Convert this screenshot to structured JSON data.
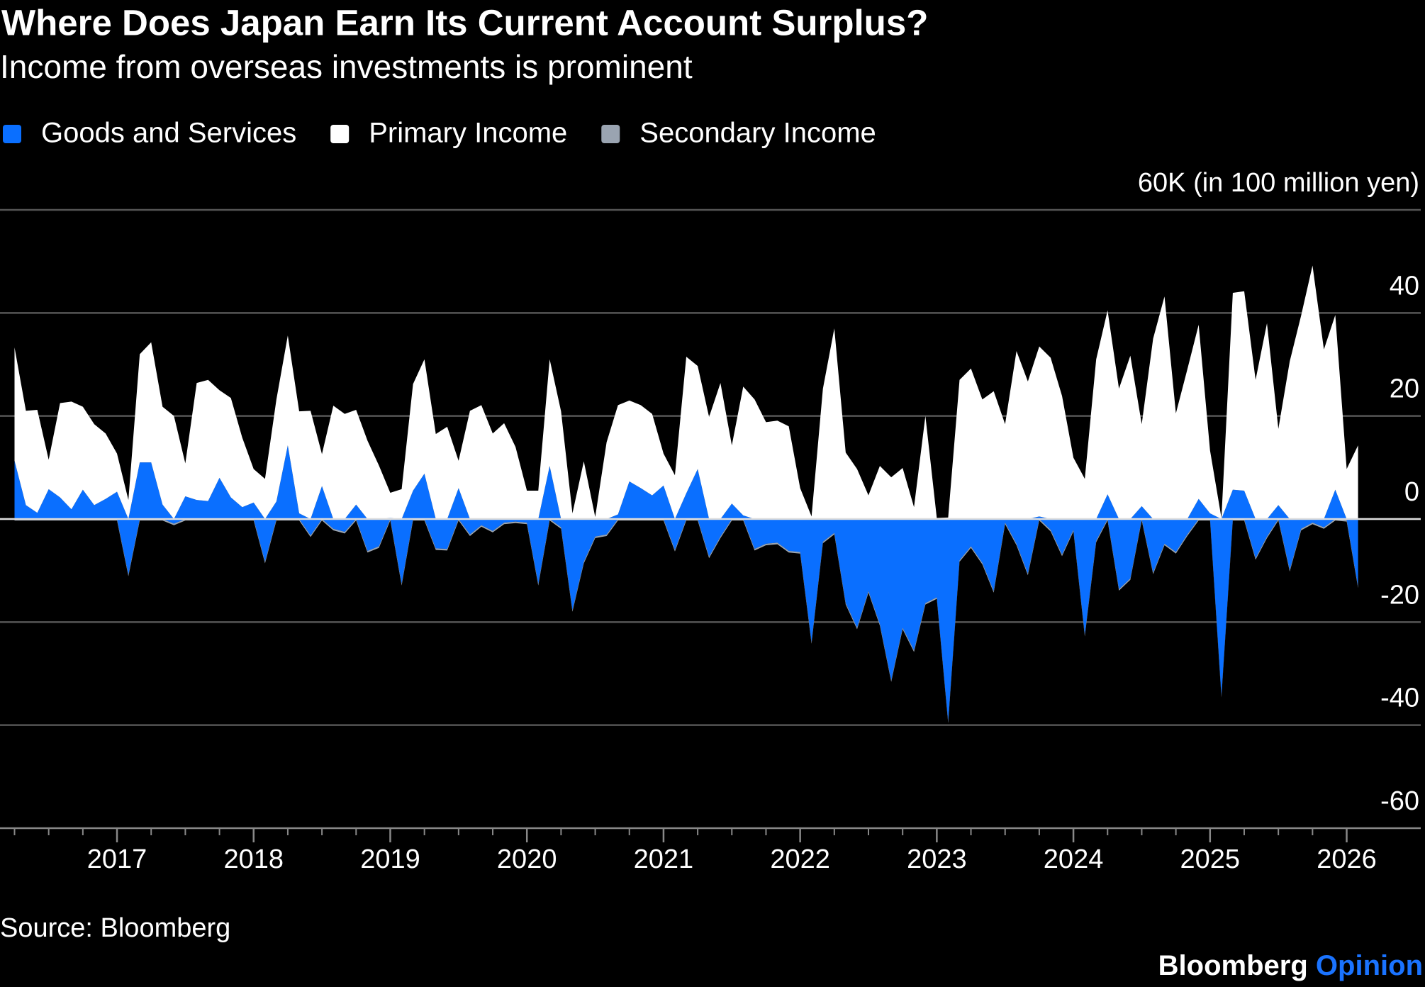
{
  "chart_data": {
    "type": "stacked_area",
    "title": "Where Does Japan Earn Its Current Account Surplus?",
    "subtitle": "Income from overseas investments is prominent",
    "source": "Source: Bloomberg",
    "credit": {
      "brand": "Bloomberg",
      "suffix": "Opinion"
    },
    "categories": [
      null,
      null,
      null,
      null,
      null,
      null,
      null,
      null,
      null,
      "2017",
      null,
      null,
      null,
      null,
      null,
      null,
      null,
      null,
      null,
      null,
      null,
      "2018",
      null,
      null,
      null,
      null,
      null,
      null,
      null,
      null,
      null,
      null,
      null,
      "2019",
      null,
      null,
      null,
      null,
      null,
      null,
      null,
      null,
      null,
      null,
      null,
      "2020",
      null,
      null,
      null,
      null,
      null,
      null,
      null,
      null,
      null,
      null,
      null,
      "2021",
      null,
      null,
      null,
      null,
      null,
      null,
      null,
      null,
      null,
      null,
      null,
      "2022",
      null,
      null,
      null,
      null,
      null,
      null,
      null,
      null,
      null,
      null,
      null,
      "2023",
      null,
      null,
      null,
      null,
      null,
      null,
      null,
      null,
      null,
      null,
      null,
      "2024",
      null,
      null,
      null,
      null,
      null,
      null,
      null,
      null,
      null,
      null,
      null,
      "2025",
      null,
      null,
      null,
      null,
      null,
      null,
      null,
      null,
      null,
      null,
      null,
      "2026",
      null
    ],
    "ylim": [
      -60,
      60
    ],
    "yticks": [
      -60,
      -40,
      -20,
      0,
      20,
      40,
      {
        "value": 60,
        "label": "60K (in 100 million yen)"
      }
    ],
    "grid": true,
    "legend": "top-left",
    "series": [
      {
        "name": "Goods and Services",
        "color": "#0a6fff",
        "values": [
          11.3,
          2.7,
          1.2,
          5.8,
          4.2,
          1.9,
          5.7,
          2.7,
          3.9,
          5.3,
          -10.8,
          11,
          11,
          2.8,
          -0.9,
          4.4,
          3.7,
          3.5,
          8,
          4.2,
          2.3,
          3.2,
          -8.3,
          3.4,
          14.3,
          1.1,
          -3.2,
          6.4,
          -1.9,
          -2.5,
          2.8,
          -6.2,
          -5.3,
          0.2,
          -12.6,
          5.5,
          8.8,
          -5.7,
          -5.8,
          6,
          -3,
          -1.2,
          -2.3,
          -0.7,
          -0.5,
          -0.7,
          -12.6,
          10.3,
          -1.6,
          -17.7,
          -8.3,
          -3.4,
          -3,
          0.9,
          7.3,
          6,
          4.6,
          6.5,
          -6,
          5,
          9.7,
          -7.3,
          -3.4,
          3,
          0.7,
          -5.8,
          -4.8,
          -4.6,
          -6.2,
          -6.4,
          -23.9,
          -4.4,
          -2.7,
          -16.3,
          -21.1,
          -14,
          -20.4,
          -31.3,
          -21.1,
          -25.5,
          -16.3,
          -15.2,
          -39.3,
          -8,
          -5.3,
          -8.5,
          -14,
          -0.7,
          -4.8,
          -10.6,
          0.5,
          -2.1,
          -6.9,
          -2.1,
          -22.5,
          -4.2,
          4.8,
          -13.6,
          -11.5,
          2.5,
          -10.4,
          -4.8,
          -6.4,
          -3,
          3.9,
          1.1,
          -34.3,
          5.7,
          5.5,
          -7.6,
          -3.4,
          2.7,
          -9.9,
          -1.9,
          -0.7,
          -1.6,
          5.7,
          -0.2,
          -13.1
        ]
      },
      {
        "name": "Primary Income",
        "color": "#ffffff",
        "values": [
          22,
          18.3,
          20,
          5.7,
          18.3,
          20.9,
          16.1,
          15.7,
          12.7,
          7.4,
          3.7,
          21,
          23.3,
          19,
          20,
          6.4,
          22.7,
          23.5,
          17,
          19.3,
          13.5,
          6.5,
          7.8,
          19.8,
          21.3,
          19.8,
          21,
          6.2,
          22,
          20.4,
          18.4,
          15.2,
          10.4,
          4.9,
          5.8,
          20.7,
          22.2,
          16.5,
          17.9,
          5.3,
          21,
          22.1,
          16.6,
          18.6,
          14,
          5.5,
          5.5,
          20.7,
          20.9,
          1.1,
          11.2,
          0.4,
          14.9,
          21.2,
          15.7,
          16.1,
          15.8,
          6.2,
          8.5,
          26.5,
          20,
          19.8,
          26.4,
          11.3,
          25,
          23.2,
          18.8,
          19.1,
          18,
          6,
          0.5,
          25.3,
          37,
          12.9,
          9.7,
          4.6,
          10.3,
          8.1,
          9.9,
          2.3,
          20,
          0.2,
          0.3,
          27,
          29.2,
          23.2,
          24.8,
          18.4,
          32.6,
          26.7,
          33,
          31.3,
          23.9,
          11.9,
          7.8,
          31,
          35.7,
          25.3,
          31.7,
          15.9,
          35,
          43.2,
          20.5,
          29,
          33.8,
          12.2,
          0.2,
          38.2,
          38.7,
          27,
          38,
          14.8,
          30.6,
          39.5,
          49.2,
          32.9,
          33.9,
          9.7,
          14.3
        ]
      },
      {
        "name": "Secondary Income",
        "color": "#9aa4b1",
        "values": [
          -0.3,
          -0.3,
          -0.3,
          -0.3,
          -0.3,
          -0.3,
          -0.3,
          -0.3,
          -0.3,
          -0.3,
          -0.3,
          -0.3,
          -0.3,
          -0.3,
          -0.3,
          -0.3,
          -0.3,
          -0.3,
          -0.3,
          -0.3,
          -0.3,
          -0.3,
          -0.3,
          -0.3,
          -0.3,
          -0.3,
          -0.3,
          -0.3,
          -0.3,
          -0.3,
          -0.3,
          -0.3,
          -0.3,
          -0.3,
          -0.3,
          -0.3,
          -0.3,
          -0.3,
          -0.3,
          -0.3,
          -0.3,
          -0.3,
          -0.3,
          -0.3,
          -0.3,
          -0.3,
          -0.3,
          -0.3,
          -0.3,
          -0.3,
          -0.3,
          -0.3,
          -0.3,
          -0.3,
          -0.3,
          -0.3,
          -0.3,
          -0.3,
          -0.3,
          -0.3,
          -0.3,
          -0.3,
          -0.3,
          -0.3,
          -0.3,
          -0.3,
          -0.3,
          -0.3,
          -0.3,
          -0.3,
          -0.3,
          -0.3,
          -0.3,
          -0.3,
          -0.3,
          -0.3,
          -0.3,
          -0.3,
          -0.3,
          -0.3,
          -0.3,
          -0.3,
          -0.3,
          -0.3,
          -0.3,
          -0.3,
          -0.3,
          -0.3,
          -0.3,
          -0.3,
          -0.3,
          -0.3,
          -0.3,
          -0.3,
          -0.3,
          -0.3,
          -0.3,
          -0.3,
          -0.3,
          -0.3,
          -0.3,
          -0.3,
          -0.3,
          -0.3,
          -0.3,
          -0.3,
          -0.3,
          -0.3,
          -0.3,
          -0.3,
          -0.3,
          -0.3,
          -0.3,
          -0.3,
          -0.3,
          -0.3,
          -0.3,
          -0.3,
          -0.3
        ]
      }
    ]
  }
}
